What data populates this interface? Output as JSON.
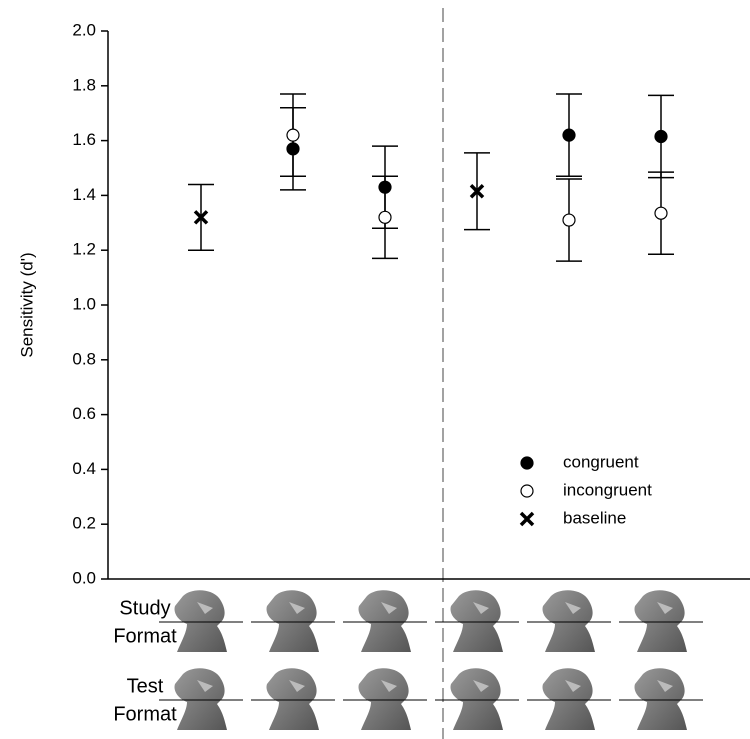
{
  "chart_data": {
    "type": "scatter",
    "y_label": "Sensitivity (d')",
    "categories": [
      null,
      null,
      null,
      null,
      null,
      null
    ],
    "series": [
      {
        "name": "congruent",
        "color": "#000000",
        "marker": "circle",
        "values": [
          null,
          1.57,
          1.43,
          null,
          1.62,
          1.615
        ],
        "errors": [
          null,
          0.15,
          0.15,
          null,
          0.15,
          0.15
        ]
      },
      {
        "name": "incongruent",
        "color": "#ffffff",
        "marker": "circle",
        "values": [
          null,
          1.62,
          1.32,
          null,
          1.31,
          1.335
        ],
        "errors": [
          null,
          0.15,
          0.15,
          null,
          0.15,
          0.15
        ]
      },
      {
        "name": "baseline",
        "color": "#000000",
        "marker": "x",
        "values": [
          1.32,
          null,
          null,
          1.415,
          null,
          null
        ],
        "errors": [
          0.12,
          null,
          null,
          0.14,
          null,
          null
        ]
      }
    ],
    "ylim": [
      0,
      2
    ],
    "yticks": [
      {
        "value": 0,
        "label": "0.0"
      },
      {
        "value": 0.2,
        "label": "0.2"
      },
      {
        "value": 0.4,
        "label": "0.4"
      },
      {
        "value": 0.6,
        "label": "0.6"
      },
      {
        "value": 0.8,
        "label": "0.8"
      },
      {
        "value": 1,
        "label": "1.0"
      },
      {
        "value": 1.2,
        "label": "1.2"
      },
      {
        "value": 1.4,
        "label": "1.4"
      },
      {
        "value": 1.6,
        "label": "1.6"
      },
      {
        "value": 1.8,
        "label": "1.8"
      },
      {
        "value": 2,
        "label": "2.0"
      }
    ],
    "legend": "lower right",
    "row_labels": [
      [
        "Study",
        "Format"
      ],
      [
        "Test",
        "Format"
      ]
    ]
  }
}
